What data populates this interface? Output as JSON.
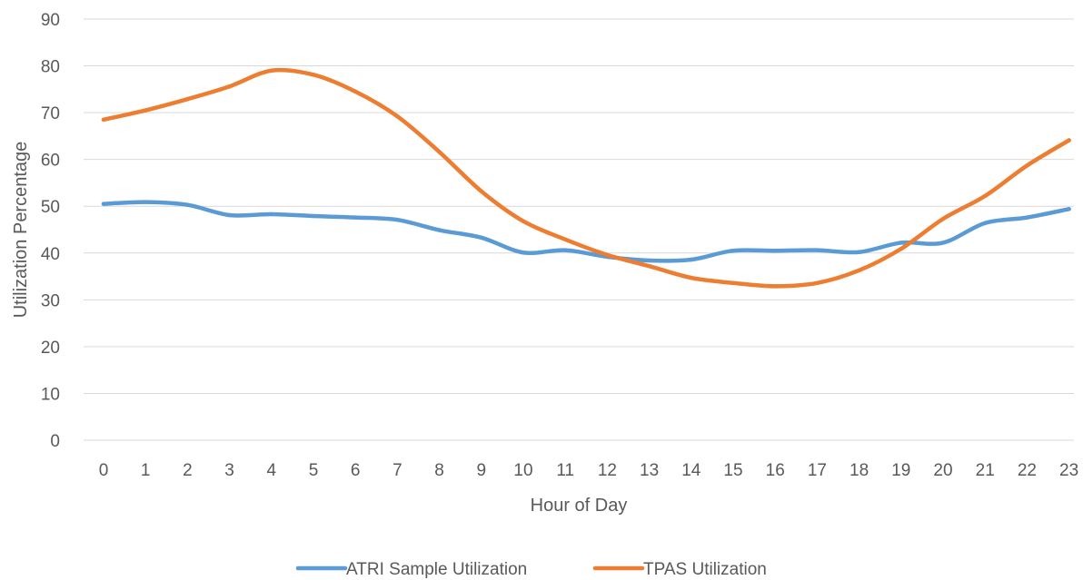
{
  "chart_data": {
    "type": "line",
    "title": "",
    "xlabel": "Hour of Day",
    "ylabel": "Utilization Percentage",
    "ylim": [
      0,
      90
    ],
    "yticks": [
      0,
      10,
      20,
      30,
      40,
      50,
      60,
      70,
      80,
      90
    ],
    "categories": [
      "0",
      "1",
      "2",
      "3",
      "4",
      "5",
      "6",
      "7",
      "8",
      "9",
      "10",
      "11",
      "12",
      "13",
      "14",
      "15",
      "16",
      "17",
      "18",
      "19",
      "20",
      "21",
      "22",
      "23"
    ],
    "grid": true,
    "legend_position": "bottom",
    "series": [
      {
        "name": "ATRI Sample Utilization",
        "color": "#5B9BD5",
        "values": [
          50.5,
          50.9,
          50.3,
          48.1,
          48.3,
          47.9,
          47.6,
          47.1,
          44.9,
          43.3,
          40.1,
          40.6,
          39.2,
          38.4,
          38.6,
          40.5,
          40.5,
          40.6,
          40.2,
          42.2,
          42.2,
          46.4,
          47.6,
          49.4
        ]
      },
      {
        "name": "TPAS Utilization",
        "color": "#ED7D31",
        "values": [
          68.5,
          70.5,
          72.9,
          75.6,
          79.0,
          78.1,
          74.5,
          69.2,
          61.6,
          53.2,
          46.8,
          42.9,
          39.6,
          37.2,
          34.7,
          33.6,
          32.9,
          33.6,
          36.3,
          40.9,
          47.3,
          52.2,
          58.7,
          64.1
        ]
      }
    ]
  }
}
